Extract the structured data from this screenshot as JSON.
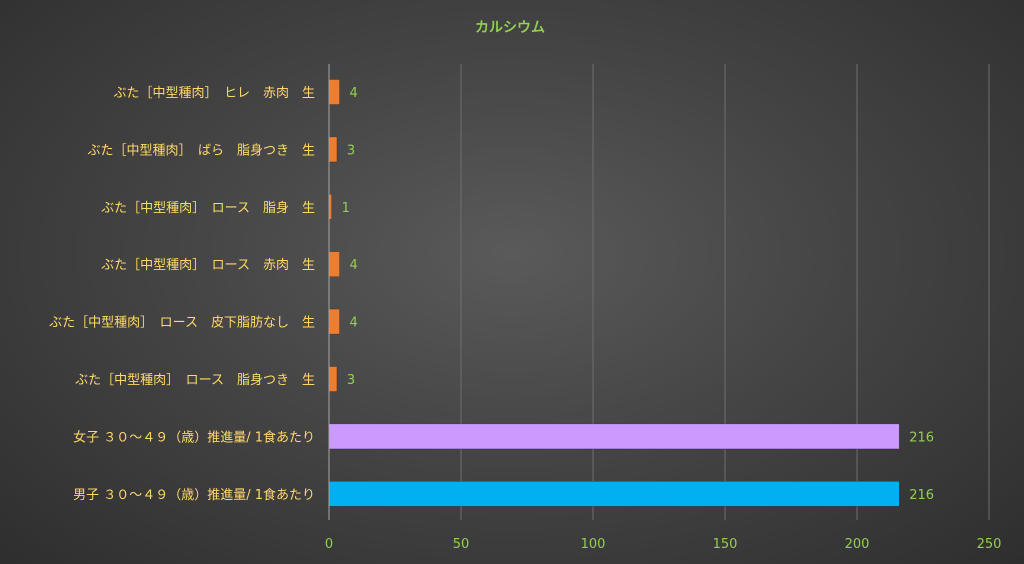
{
  "chart_data": {
    "type": "bar",
    "orientation": "horizontal",
    "title": "カルシウム",
    "categories": [
      "ぶた［中型種肉］　ヒレ　赤肉　生",
      "ぶた［中型種肉］　ばら　脂身つき　生",
      "ぶた［中型種肉］　ロース　脂身　生",
      "ぶた［中型種肉］　ロース　赤肉　生",
      "ぶた［中型種肉］　ロース　皮下脂肪なし　生",
      "ぶた［中型種肉］　ロース　脂身つき　生",
      "女子 ３０～４９（歳）推進量/ 1食あたり",
      "男子 ３０～４９（歳）推進量/ 1食あたり"
    ],
    "values": [
      4,
      3,
      1,
      4,
      4,
      3,
      216,
      216
    ],
    "bar_colors": [
      "#ed7d31",
      "#ed7d31",
      "#ed7d31",
      "#ed7d31",
      "#ed7d31",
      "#ed7d31",
      "#cc99ff",
      "#00b0f0"
    ],
    "xlim": [
      0,
      250
    ],
    "xticks": [
      0,
      50,
      100,
      150,
      200,
      250
    ],
    "grid": true,
    "data_labels": true,
    "colors": {
      "title": "#92d050",
      "category_text": "#ffd966",
      "tick_text": "#92d050",
      "data_label_text": "#92d050",
      "gridline": "#6e6e6e",
      "axis": "#a6a6a6"
    }
  }
}
